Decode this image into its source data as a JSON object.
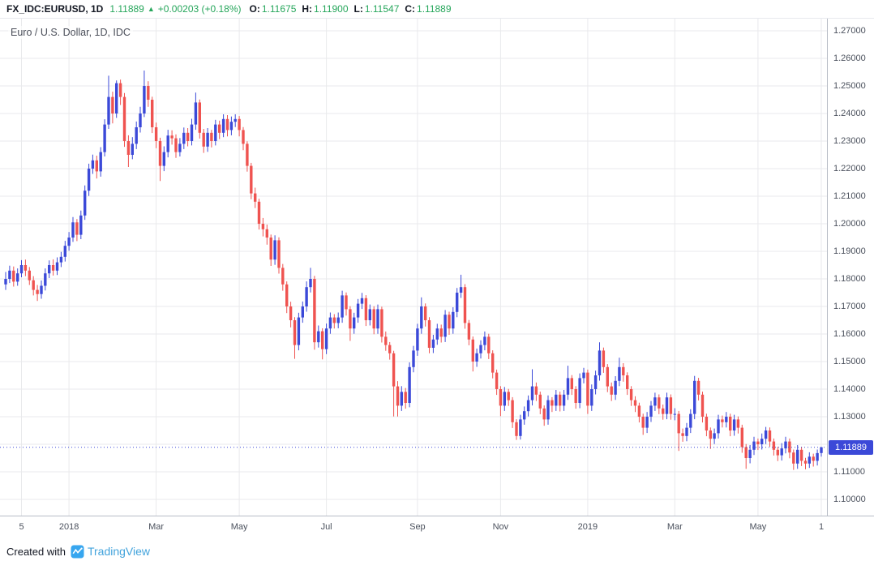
{
  "header": {
    "symbol": "FX_IDC:EURUSD, 1D",
    "last_price": "1.11889",
    "direction_icon": "▲",
    "change": "+0.00203 (+0.18%)",
    "ohlc": [
      {
        "label": "O:",
        "value": "1.11675"
      },
      {
        "label": "H:",
        "value": "1.11900"
      },
      {
        "label": "L:",
        "value": "1.11547"
      },
      {
        "label": "C:",
        "value": "1.11889"
      }
    ]
  },
  "legend": "Euro / U.S. Dollar, 1D, IDC",
  "footer": {
    "created_with": "Created with",
    "brand": "TradingView"
  },
  "colors": {
    "up": "#3b49d8",
    "down": "#ef5350",
    "badge": "#3b49d8",
    "green": "#26a65b",
    "grid": "#e9eaec",
    "axis_text": "#4a505c",
    "axis_border": "#b8bcc6",
    "logo_blue": "#37a6ef",
    "wordmark_blue": "#42a3dc"
  },
  "chart_data": {
    "type": "candlestick",
    "title": "Euro / U.S. Dollar, 1D, IDC",
    "symbol": "FX_IDC:EURUSD",
    "interval": "1D",
    "grid": {
      "min": 1.1,
      "max": 1.27,
      "step": 0.01
    },
    "ylim": [
      1.09412,
      1.27441
    ],
    "current_price": 1.11889,
    "current_price_label": "1.11889",
    "price_ticks": [
      "1.27000",
      "1.26000",
      "1.25000",
      "1.24000",
      "1.23000",
      "1.22000",
      "1.21000",
      "1.20000",
      "1.19000",
      "1.18000",
      "1.17000",
      "1.16000",
      "1.15000",
      "1.14000",
      "1.13000",
      "1.11000",
      "1.10000"
    ],
    "time_ticks": [
      {
        "index": 4,
        "label": "5"
      },
      {
        "index": 16,
        "label": "2018"
      },
      {
        "index": 38,
        "label": "Mar"
      },
      {
        "index": 59,
        "label": "May"
      },
      {
        "index": 81,
        "label": "Jul"
      },
      {
        "index": 104,
        "label": "Sep"
      },
      {
        "index": 125,
        "label": "Nov"
      },
      {
        "index": 147,
        "label": "2019"
      },
      {
        "index": 169,
        "label": "Mar"
      },
      {
        "index": 190,
        "label": "May"
      },
      {
        "index": 206,
        "label": "1"
      }
    ],
    "candles": [
      [
        1.178,
        1.1825,
        1.176,
        1.18
      ],
      [
        1.18,
        1.1848,
        1.1785,
        1.183
      ],
      [
        1.183,
        1.1845,
        1.1772,
        1.179
      ],
      [
        1.179,
        1.1838,
        1.1775,
        1.182
      ],
      [
        1.182,
        1.1868,
        1.1806,
        1.185
      ],
      [
        1.185,
        1.187,
        1.181,
        1.183
      ],
      [
        1.183,
        1.1843,
        1.1778,
        1.1795
      ],
      [
        1.1795,
        1.181,
        1.174,
        1.176
      ],
      [
        1.176,
        1.1778,
        1.172,
        1.1745
      ],
      [
        1.1745,
        1.1794,
        1.1728,
        1.1775
      ],
      [
        1.1775,
        1.1838,
        1.1758,
        1.182
      ],
      [
        1.182,
        1.1867,
        1.1803,
        1.185
      ],
      [
        1.185,
        1.1871,
        1.1812,
        1.183
      ],
      [
        1.183,
        1.1878,
        1.1814,
        1.186
      ],
      [
        1.186,
        1.1898,
        1.1843,
        1.188
      ],
      [
        1.188,
        1.1938,
        1.1863,
        1.192
      ],
      [
        1.192,
        1.197,
        1.1902,
        1.195
      ],
      [
        1.195,
        1.2024,
        1.1934,
        1.2005
      ],
      [
        1.2005,
        1.2017,
        1.1937,
        1.196
      ],
      [
        1.196,
        1.2048,
        1.1944,
        1.203
      ],
      [
        1.203,
        1.2139,
        1.2014,
        1.212
      ],
      [
        1.212,
        1.2218,
        1.2101,
        1.22
      ],
      [
        1.22,
        1.2251,
        1.2181,
        1.223
      ],
      [
        1.223,
        1.2247,
        1.2164,
        1.219
      ],
      [
        1.219,
        1.2278,
        1.2171,
        1.226
      ],
      [
        1.226,
        1.2379,
        1.2244,
        1.236
      ],
      [
        1.236,
        1.2537,
        1.2344,
        1.246
      ],
      [
        1.246,
        1.2479,
        1.2364,
        1.24
      ],
      [
        1.24,
        1.252,
        1.2384,
        1.251
      ],
      [
        1.251,
        1.2523,
        1.2431,
        1.246
      ],
      [
        1.246,
        1.2474,
        1.2279,
        1.23
      ],
      [
        1.23,
        1.2321,
        1.2206,
        1.225
      ],
      [
        1.225,
        1.2314,
        1.2234,
        1.229
      ],
      [
        1.229,
        1.2371,
        1.2271,
        1.235
      ],
      [
        1.235,
        1.2424,
        1.2331,
        1.24
      ],
      [
        1.24,
        1.2556,
        1.2387,
        1.25
      ],
      [
        1.25,
        1.2517,
        1.2424,
        1.245
      ],
      [
        1.245,
        1.2461,
        1.2329,
        1.235
      ],
      [
        1.235,
        1.2367,
        1.2274,
        1.23
      ],
      [
        1.23,
        1.2312,
        1.2155,
        1.221
      ],
      [
        1.221,
        1.2281,
        1.2191,
        1.226
      ],
      [
        1.226,
        1.2341,
        1.2241,
        1.232
      ],
      [
        1.232,
        1.2339,
        1.2287,
        1.231
      ],
      [
        1.231,
        1.2324,
        1.2239,
        1.226
      ],
      [
        1.226,
        1.2311,
        1.2244,
        1.229
      ],
      [
        1.229,
        1.2349,
        1.2271,
        1.233
      ],
      [
        1.233,
        1.2347,
        1.2281,
        1.23
      ],
      [
        1.23,
        1.2381,
        1.2284,
        1.236
      ],
      [
        1.236,
        1.2476,
        1.2341,
        1.244
      ],
      [
        1.244,
        1.2451,
        1.2309,
        1.233
      ],
      [
        1.233,
        1.2344,
        1.2257,
        1.228
      ],
      [
        1.228,
        1.2347,
        1.2261,
        1.233
      ],
      [
        1.233,
        1.2341,
        1.2277,
        1.23
      ],
      [
        1.23,
        1.2377,
        1.2284,
        1.236
      ],
      [
        1.236,
        1.2374,
        1.2307,
        1.233
      ],
      [
        1.233,
        1.2397,
        1.2314,
        1.238
      ],
      [
        1.238,
        1.2394,
        1.2317,
        1.234
      ],
      [
        1.234,
        1.2389,
        1.2321,
        1.237
      ],
      [
        1.237,
        1.2397,
        1.2351,
        1.238
      ],
      [
        1.238,
        1.2391,
        1.2317,
        1.234
      ],
      [
        1.234,
        1.2351,
        1.2267,
        1.229
      ],
      [
        1.229,
        1.2299,
        1.2189,
        1.221
      ],
      [
        1.221,
        1.2221,
        1.2089,
        1.211
      ],
      [
        1.211,
        1.2131,
        1.2057,
        1.208
      ],
      [
        1.208,
        1.2091,
        1.1979,
        1.2
      ],
      [
        1.2,
        1.2021,
        1.1954,
        1.198
      ],
      [
        1.198,
        1.1997,
        1.1924,
        1.195
      ],
      [
        1.195,
        1.1961,
        1.1847,
        1.187
      ],
      [
        1.187,
        1.1958,
        1.1851,
        1.194
      ],
      [
        1.194,
        1.1951,
        1.1819,
        1.184
      ],
      [
        1.184,
        1.1854,
        1.1757,
        1.178
      ],
      [
        1.178,
        1.1791,
        1.1676,
        1.17
      ],
      [
        1.17,
        1.1717,
        1.1624,
        1.165
      ],
      [
        1.165,
        1.1661,
        1.151,
        1.156
      ],
      [
        1.156,
        1.1677,
        1.1541,
        1.166
      ],
      [
        1.166,
        1.1718,
        1.1641,
        1.17
      ],
      [
        1.17,
        1.1791,
        1.1681,
        1.177
      ],
      [
        1.177,
        1.184,
        1.1751,
        1.18
      ],
      [
        1.18,
        1.1811,
        1.1543,
        1.157
      ],
      [
        1.157,
        1.1631,
        1.1551,
        1.161
      ],
      [
        1.161,
        1.1621,
        1.1508,
        1.1545
      ],
      [
        1.1545,
        1.1638,
        1.1527,
        1.162
      ],
      [
        1.162,
        1.1678,
        1.1601,
        1.166
      ],
      [
        1.166,
        1.1672,
        1.162,
        1.164
      ],
      [
        1.164,
        1.1678,
        1.1621,
        1.166
      ],
      [
        1.166,
        1.1757,
        1.1641,
        1.174
      ],
      [
        1.174,
        1.1751,
        1.1667,
        1.169
      ],
      [
        1.169,
        1.1701,
        1.1575,
        1.162
      ],
      [
        1.162,
        1.1677,
        1.1601,
        1.166
      ],
      [
        1.166,
        1.1727,
        1.1641,
        1.171
      ],
      [
        1.171,
        1.1749,
        1.1691,
        1.173
      ],
      [
        1.173,
        1.1741,
        1.1629,
        1.165
      ],
      [
        1.165,
        1.1707,
        1.1631,
        1.169
      ],
      [
        1.169,
        1.1701,
        1.1599,
        1.162
      ],
      [
        1.162,
        1.1707,
        1.1601,
        1.169
      ],
      [
        1.169,
        1.1699,
        1.1569,
        1.159
      ],
      [
        1.159,
        1.1609,
        1.1539,
        1.156
      ],
      [
        1.156,
        1.1571,
        1.1507,
        1.153
      ],
      [
        1.153,
        1.1539,
        1.1301,
        1.141
      ],
      [
        1.141,
        1.1429,
        1.1301,
        1.134
      ],
      [
        1.134,
        1.1411,
        1.1321,
        1.139
      ],
      [
        1.139,
        1.1404,
        1.1329,
        1.135
      ],
      [
        1.135,
        1.1497,
        1.1334,
        1.148
      ],
      [
        1.148,
        1.1557,
        1.1461,
        1.154
      ],
      [
        1.154,
        1.1637,
        1.1521,
        1.162
      ],
      [
        1.162,
        1.1733,
        1.1601,
        1.17
      ],
      [
        1.17,
        1.1711,
        1.1627,
        1.165
      ],
      [
        1.165,
        1.1661,
        1.153,
        1.155
      ],
      [
        1.155,
        1.1597,
        1.1531,
        1.158
      ],
      [
        1.158,
        1.1637,
        1.1561,
        1.162
      ],
      [
        1.162,
        1.1634,
        1.1569,
        1.159
      ],
      [
        1.159,
        1.1687,
        1.1571,
        1.167
      ],
      [
        1.167,
        1.1681,
        1.1597,
        1.162
      ],
      [
        1.162,
        1.1697,
        1.1601,
        1.168
      ],
      [
        1.168,
        1.1767,
        1.1661,
        1.175
      ],
      [
        1.175,
        1.1815,
        1.1731,
        1.177
      ],
      [
        1.177,
        1.1781,
        1.1619,
        1.164
      ],
      [
        1.164,
        1.1651,
        1.1559,
        1.158
      ],
      [
        1.158,
        1.1591,
        1.1464,
        1.15
      ],
      [
        1.15,
        1.1547,
        1.1481,
        1.153
      ],
      [
        1.153,
        1.1577,
        1.1511,
        1.156
      ],
      [
        1.156,
        1.1609,
        1.1541,
        1.159
      ],
      [
        1.159,
        1.1601,
        1.1509,
        1.153
      ],
      [
        1.153,
        1.1541,
        1.1439,
        1.146
      ],
      [
        1.146,
        1.1471,
        1.1379,
        1.14
      ],
      [
        1.14,
        1.1411,
        1.1302,
        1.134
      ],
      [
        1.134,
        1.1408,
        1.1321,
        1.139
      ],
      [
        1.139,
        1.1401,
        1.1339,
        1.136
      ],
      [
        1.136,
        1.1371,
        1.1259,
        1.128
      ],
      [
        1.128,
        1.1291,
        1.1216,
        1.123
      ],
      [
        1.123,
        1.1307,
        1.1217,
        1.129
      ],
      [
        1.129,
        1.1337,
        1.1271,
        1.132
      ],
      [
        1.132,
        1.1377,
        1.1301,
        1.136
      ],
      [
        1.136,
        1.1472,
        1.1341,
        1.141
      ],
      [
        1.141,
        1.1424,
        1.1357,
        1.138
      ],
      [
        1.138,
        1.1391,
        1.1309,
        1.133
      ],
      [
        1.133,
        1.1341,
        1.1267,
        1.129
      ],
      [
        1.129,
        1.1377,
        1.1271,
        1.136
      ],
      [
        1.136,
        1.1371,
        1.1317,
        1.134
      ],
      [
        1.134,
        1.1397,
        1.1321,
        1.138
      ],
      [
        1.138,
        1.1391,
        1.1319,
        1.134
      ],
      [
        1.134,
        1.1397,
        1.1321,
        1.138
      ],
      [
        1.138,
        1.1485,
        1.1361,
        1.144
      ],
      [
        1.144,
        1.1451,
        1.1379,
        1.14
      ],
      [
        1.14,
        1.1411,
        1.1329,
        1.135
      ],
      [
        1.135,
        1.1457,
        1.1331,
        1.144
      ],
      [
        1.144,
        1.1477,
        1.1421,
        1.146
      ],
      [
        1.146,
        1.1471,
        1.131,
        1.134
      ],
      [
        1.134,
        1.1417,
        1.1321,
        1.14
      ],
      [
        1.14,
        1.1467,
        1.1381,
        1.145
      ],
      [
        1.145,
        1.157,
        1.1431,
        1.154
      ],
      [
        1.154,
        1.1551,
        1.1459,
        1.148
      ],
      [
        1.148,
        1.1491,
        1.1389,
        1.141
      ],
      [
        1.141,
        1.1424,
        1.1357,
        1.138
      ],
      [
        1.138,
        1.1447,
        1.1361,
        1.143
      ],
      [
        1.143,
        1.1514,
        1.1411,
        1.148
      ],
      [
        1.148,
        1.1494,
        1.1427,
        1.145
      ],
      [
        1.145,
        1.1461,
        1.1379,
        1.14
      ],
      [
        1.14,
        1.1411,
        1.1339,
        1.136
      ],
      [
        1.136,
        1.1374,
        1.1317,
        1.134
      ],
      [
        1.134,
        1.1351,
        1.1279,
        1.13
      ],
      [
        1.13,
        1.1311,
        1.1234,
        1.126
      ],
      [
        1.126,
        1.1317,
        1.1241,
        1.13
      ],
      [
        1.13,
        1.1357,
        1.1281,
        1.134
      ],
      [
        1.134,
        1.1387,
        1.1321,
        1.137
      ],
      [
        1.137,
        1.1381,
        1.1309,
        1.133
      ],
      [
        1.133,
        1.1344,
        1.1289,
        1.131
      ],
      [
        1.131,
        1.1387,
        1.1291,
        1.137
      ],
      [
        1.137,
        1.1381,
        1.1289,
        1.131
      ],
      [
        1.131,
        1.1331,
        1.1287,
        1.131
      ],
      [
        1.131,
        1.1321,
        1.1176,
        1.124
      ],
      [
        1.124,
        1.1257,
        1.1209,
        1.123
      ],
      [
        1.123,
        1.1277,
        1.1211,
        1.126
      ],
      [
        1.126,
        1.1327,
        1.1241,
        1.131
      ],
      [
        1.131,
        1.1448,
        1.1291,
        1.143
      ],
      [
        1.143,
        1.1441,
        1.1359,
        1.138
      ],
      [
        1.138,
        1.1391,
        1.1279,
        1.13
      ],
      [
        1.13,
        1.1311,
        1.1229,
        1.125
      ],
      [
        1.125,
        1.1261,
        1.1183,
        1.122
      ],
      [
        1.122,
        1.1257,
        1.1201,
        1.124
      ],
      [
        1.124,
        1.1307,
        1.1221,
        1.129
      ],
      [
        1.129,
        1.1304,
        1.1261,
        1.128
      ],
      [
        1.128,
        1.1317,
        1.1261,
        1.13
      ],
      [
        1.13,
        1.1311,
        1.1229,
        1.125
      ],
      [
        1.125,
        1.1307,
        1.1231,
        1.129
      ],
      [
        1.129,
        1.1301,
        1.1239,
        1.126
      ],
      [
        1.126,
        1.1271,
        1.1169,
        1.119
      ],
      [
        1.119,
        1.1201,
        1.1111,
        1.115
      ],
      [
        1.115,
        1.1197,
        1.1131,
        1.118
      ],
      [
        1.118,
        1.1227,
        1.1161,
        1.121
      ],
      [
        1.121,
        1.1221,
        1.1179,
        1.12
      ],
      [
        1.12,
        1.1239,
        1.1181,
        1.122
      ],
      [
        1.122,
        1.1263,
        1.1201,
        1.125
      ],
      [
        1.125,
        1.1261,
        1.1191,
        1.121
      ],
      [
        1.121,
        1.1221,
        1.1159,
        1.118
      ],
      [
        1.118,
        1.1191,
        1.1139,
        1.116
      ],
      [
        1.116,
        1.1204,
        1.1141,
        1.1185
      ],
      [
        1.1185,
        1.1227,
        1.1167,
        1.121
      ],
      [
        1.121,
        1.1221,
        1.1149,
        1.117
      ],
      [
        1.117,
        1.1181,
        1.1107,
        1.113
      ],
      [
        1.113,
        1.1197,
        1.1111,
        1.118
      ],
      [
        1.118,
        1.1191,
        1.1121,
        1.114
      ],
      [
        1.114,
        1.1151,
        1.1109,
        1.113
      ],
      [
        1.113,
        1.1171,
        1.1114,
        1.1155
      ],
      [
        1.1155,
        1.1166,
        1.1119,
        1.114
      ],
      [
        1.114,
        1.1181,
        1.1123,
        1.1168
      ],
      [
        1.1168,
        1.119,
        1.1155,
        1.1189
      ]
    ]
  }
}
